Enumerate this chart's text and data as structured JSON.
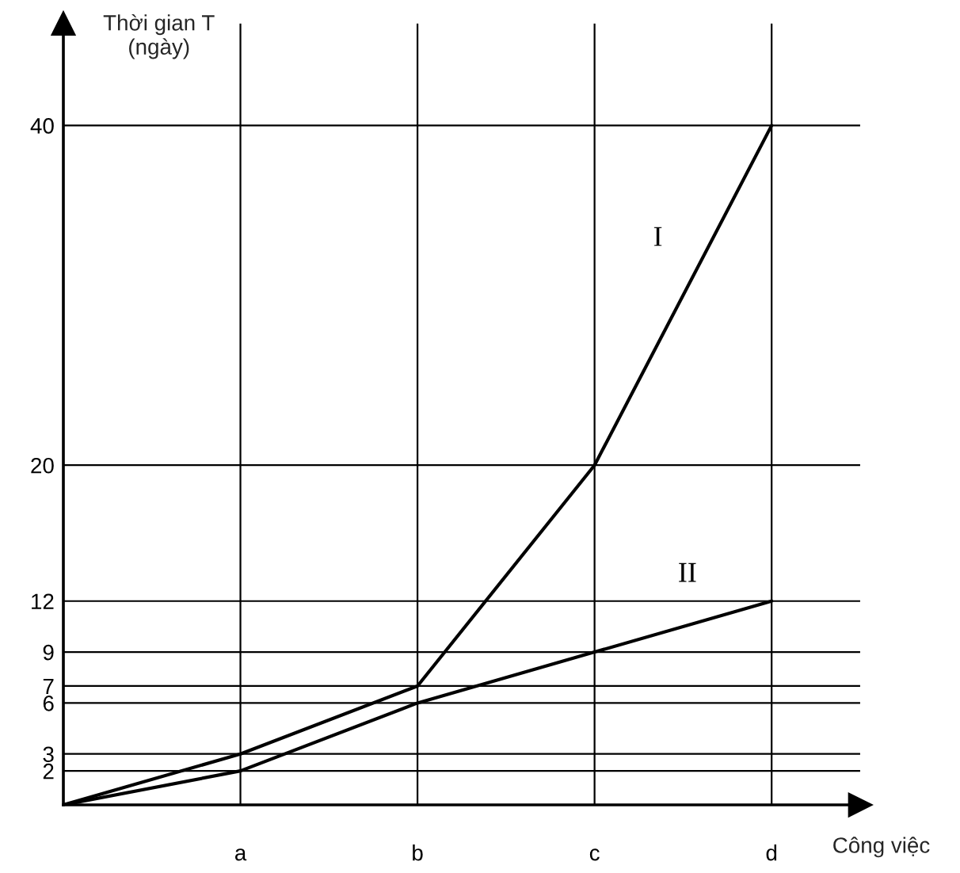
{
  "chart_data": {
    "type": "line",
    "xlabel": "Công việc",
    "ylabel": "Thời gian T\n(ngày)",
    "categories": [
      null,
      "a",
      "b",
      "c",
      "d"
    ],
    "series": [
      {
        "name": "I",
        "color": "#000000",
        "values": [
          0,
          3,
          7,
          20,
          40
        ]
      },
      {
        "name": "II",
        "color": "#000000",
        "values": [
          0,
          2,
          6,
          9,
          12
        ]
      }
    ],
    "ylim": [
      0,
      46
    ],
    "yticks": [
      2,
      3,
      6,
      7,
      9,
      12,
      20,
      40
    ],
    "grid": true
  }
}
